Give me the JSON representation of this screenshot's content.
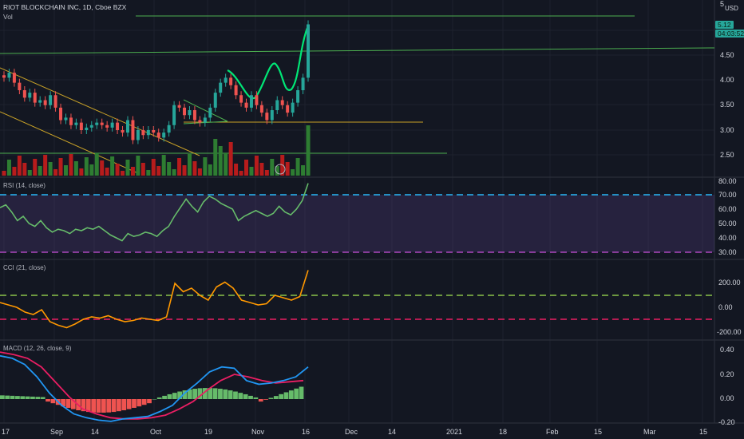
{
  "header": {
    "symbol_title": "RIOT BLOCKCHAIN INC, 1D, Cboe BZX",
    "vol_label": "Vol",
    "currency": "USD"
  },
  "price_tags": {
    "last": "5.12",
    "countdown": "04:03:52"
  },
  "panes": {
    "price": {
      "ticks": [
        "5",
        "4.50",
        "4.00",
        "3.50",
        "3.00",
        "2.50"
      ]
    },
    "rsi": {
      "title": "RSI (14, close)",
      "ticks": [
        "80.00",
        "70.00",
        "60.00",
        "50.00",
        "40.00",
        "30.00"
      ]
    },
    "cci": {
      "title": "CCI (21, close)",
      "ticks": [
        "200.00",
        "0.00",
        "-200.00"
      ]
    },
    "macd": {
      "title": "MACD (12, 26, close, 9)",
      "ticks": [
        "0.40",
        "0.20",
        "0.00",
        "-0.20"
      ]
    }
  },
  "time_axis": [
    "17",
    "Sep",
    "14",
    "Oct",
    "19",
    "Nov",
    "16",
    "Dec",
    "14",
    "2021",
    "18",
    "Feb",
    "15",
    "Mar",
    "15"
  ],
  "colors": {
    "up": "#26a69a",
    "down": "#ef5350",
    "vol_up": "#2e7d32",
    "vol_down": "#b71c1c",
    "rsi": "#66bb6a",
    "cci": "#ff9800",
    "macd": "#2196f3",
    "signal": "#e91e63"
  },
  "chart_data": {
    "type": "line",
    "title": "RIOT BLOCKCHAIN INC, 1D, Cboe BZX",
    "price_close": [
      4.05,
      4.15,
      3.95,
      3.8,
      3.65,
      3.75,
      3.55,
      3.6,
      3.5,
      3.7,
      3.45,
      3.2,
      3.25,
      3.1,
      3.15,
      3.0,
      3.05,
      3.1,
      3.15,
      3.1,
      3.05,
      3.15,
      3.0,
      2.95,
      3.2,
      2.8,
      3.0,
      2.9,
      3.0,
      2.95,
      2.85,
      2.95,
      3.1,
      3.5,
      3.45,
      3.3,
      3.4,
      3.2,
      3.15,
      3.25,
      3.45,
      3.75,
      3.95,
      4.05,
      3.9,
      3.7,
      3.55,
      3.45,
      3.7,
      3.5,
      3.35,
      3.2,
      3.4,
      3.6,
      3.5,
      3.35,
      3.55,
      3.8,
      4.05,
      5.12
    ],
    "rsi": [
      61,
      63,
      58,
      52,
      55,
      50,
      48,
      52,
      47,
      44,
      46,
      45,
      43,
      46,
      45,
      47,
      46,
      48,
      45,
      42,
      40,
      38,
      43,
      41,
      42,
      44,
      43,
      41,
      45,
      48,
      55,
      61,
      67,
      62,
      58,
      65,
      69,
      67,
      64,
      62,
      60,
      52,
      55,
      57,
      59,
      57,
      55,
      57,
      62,
      58,
      56,
      60,
      66,
      78
    ],
    "cci": [
      40,
      20,
      0,
      -40,
      -60,
      -20,
      -120,
      -150,
      -170,
      -140,
      -100,
      -80,
      -90,
      -70,
      -100,
      -120,
      -110,
      -90,
      -100,
      -110,
      -80,
      200,
      130,
      160,
      100,
      60,
      170,
      210,
      160,
      60,
      40,
      20,
      30,
      100,
      80,
      60,
      90,
      310
    ],
    "macd": [
      0.35,
      0.33,
      0.28,
      0.18,
      0.05,
      -0.05,
      -0.12,
      -0.15,
      -0.17,
      -0.18,
      -0.16,
      -0.15,
      -0.14,
      -0.1,
      -0.05,
      0.05,
      0.13,
      0.22,
      0.26,
      0.25,
      0.15,
      0.12,
      0.13,
      0.15,
      0.18,
      0.26
    ],
    "signal": [
      0.38,
      0.36,
      0.33,
      0.26,
      0.14,
      0.02,
      -0.08,
      -0.12,
      -0.15,
      -0.16,
      -0.16,
      -0.15,
      -0.13,
      -0.08,
      -0.02,
      0.07,
      0.15,
      0.2,
      0.18,
      0.15,
      0.13,
      0.14,
      0.15
    ]
  }
}
